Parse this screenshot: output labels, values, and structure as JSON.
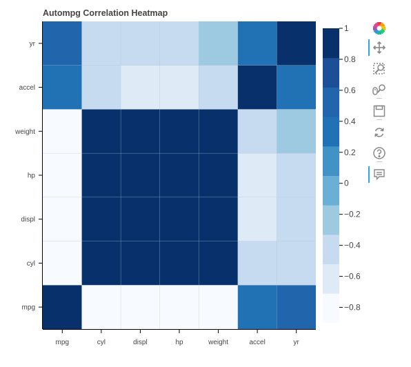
{
  "chart_data": {
    "type": "heatmap",
    "title": "Autompg Correlation Heatmap",
    "x_categories": [
      "mpg",
      "cyl",
      "displ",
      "hp",
      "weight",
      "accel",
      "yr"
    ],
    "y_categories": [
      "mpg",
      "cyl",
      "displ",
      "hp",
      "weight",
      "accel",
      "yr"
    ],
    "values": [
      [
        1.0,
        -0.78,
        -0.8,
        -0.78,
        -0.83,
        0.42,
        0.58
      ],
      [
        -0.78,
        1.0,
        0.95,
        0.84,
        0.9,
        -0.5,
        -0.35
      ],
      [
        -0.8,
        0.95,
        1.0,
        0.9,
        0.93,
        -0.54,
        -0.37
      ],
      [
        -0.78,
        0.84,
        0.9,
        1.0,
        0.86,
        -0.69,
        -0.42
      ],
      [
        -0.83,
        0.9,
        0.93,
        0.86,
        1.0,
        -0.42,
        -0.31
      ],
      [
        0.42,
        -0.5,
        -0.54,
        -0.69,
        -0.42,
        1.0,
        0.29
      ],
      [
        0.58,
        -0.35,
        -0.37,
        -0.42,
        -0.31,
        0.29,
        1.0
      ]
    ],
    "color_range": [
      -0.9,
      1.0
    ],
    "palette": [
      "#f7fbff",
      "#deebf7",
      "#c6dbef",
      "#9ecae1",
      "#6baed6",
      "#4292c6",
      "#2171b5",
      "#2166ac",
      "#1c4f96",
      "#08306b"
    ],
    "colorbar_ticks": [
      "1",
      "0.8",
      "0.6",
      "0.4",
      "0.2",
      "0",
      "−0.2",
      "−0.4",
      "−0.6",
      "−0.8"
    ],
    "colorbar_tick_values": [
      1.0,
      0.8,
      0.6,
      0.4,
      0.2,
      0.0,
      -0.2,
      -0.4,
      -0.6,
      -0.8
    ]
  },
  "toolbar": {
    "tools": [
      {
        "name": "bokeh-logo",
        "active": false
      },
      {
        "name": "pan-tool",
        "active": true
      },
      {
        "name": "box-zoom-tool",
        "active": false
      },
      {
        "name": "wheel-zoom-tool",
        "active": false
      },
      {
        "name": "save-tool",
        "active": false
      },
      {
        "name": "reset-tool",
        "active": false
      },
      {
        "name": "help-tool",
        "active": false
      },
      {
        "name": "hover-tool",
        "active": true
      }
    ]
  }
}
